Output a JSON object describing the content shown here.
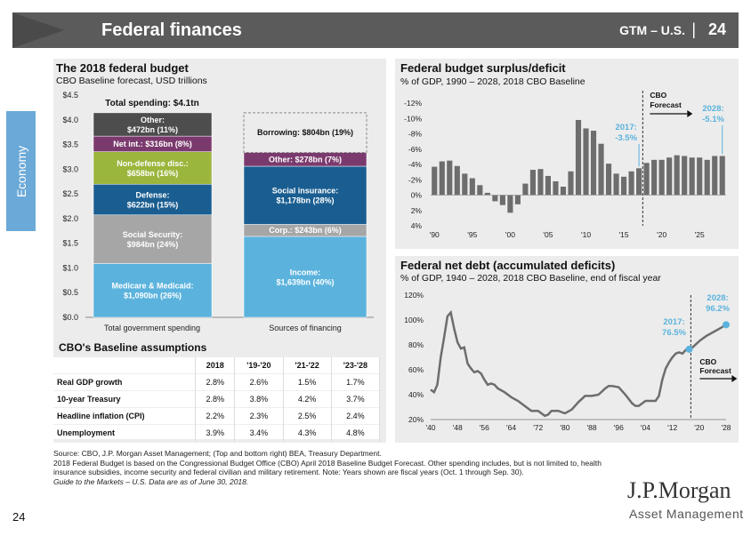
{
  "header": {
    "title": "Federal finances",
    "gtm": "GTM – U.S.",
    "sep": "|",
    "page": "24"
  },
  "sidebar": {
    "tab": "Economy"
  },
  "budget": {
    "title": "The 2018 federal budget",
    "subtitle": "CBO Baseline forecast, USD trillions",
    "total_label": "Total spending: $4.1tn",
    "chart_data": {
      "type": "bar",
      "stacked": true,
      "categories": [
        "Total government spending",
        "Sources of financing"
      ],
      "ylim": [
        0,
        4.5
      ],
      "yticks": [
        "$0.0",
        "$0.5",
        "$1.0",
        "$1.5",
        "$2.0",
        "$2.5",
        "$3.0",
        "$3.5",
        "$4.0",
        "$4.5"
      ],
      "spending": [
        {
          "name": "Medicare & Medicaid",
          "label": "Medicare & Medicaid: $1,090bn (26%)",
          "value": 1.09,
          "color": "#5bb3dd"
        },
        {
          "name": "Social Security",
          "label": "Social Security: $984bn (24%)",
          "value": 0.984,
          "color": "#a6a6a6"
        },
        {
          "name": "Defense",
          "label": "Defense: $622bn (15%)",
          "value": 0.622,
          "color": "#1a5e91"
        },
        {
          "name": "Non-defense disc.",
          "label": "Non-defense disc.: $658bn (16%)",
          "value": 0.658,
          "color": "#9bb63c"
        },
        {
          "name": "Net int.",
          "label": "Net int.: $316bn (8%)",
          "value": 0.316,
          "color": "#7b3a6e"
        },
        {
          "name": "Other",
          "label": "Other: $472bn (11%)",
          "value": 0.472,
          "color": "#4d4d4d"
        }
      ],
      "financing": [
        {
          "name": "Income",
          "label": "Income: $1,639bn (40%)",
          "value": 1.639,
          "color": "#5bb3dd"
        },
        {
          "name": "Corp.",
          "label": "Corp.: $243bn (6%)",
          "value": 0.243,
          "color": "#a6a6a6"
        },
        {
          "name": "Social insurance",
          "label": "Social insurance: $1,178bn (28%)",
          "value": 1.178,
          "color": "#1a5e91"
        },
        {
          "name": "Other",
          "label": "Other: $278bn (7%)",
          "value": 0.278,
          "color": "#7b3a6e"
        },
        {
          "name": "Borrowing",
          "label": "Borrowing: $804bn (19%)",
          "value": 0.804,
          "color": "none"
        }
      ]
    }
  },
  "assumptions": {
    "title": "CBO's Baseline assumptions",
    "headers": [
      "",
      "2018",
      "'19-'20",
      "'21-'22",
      "'23-'28"
    ],
    "rows": [
      [
        "Real GDP growth",
        "2.8%",
        "2.6%",
        "1.5%",
        "1.7%"
      ],
      [
        "10-year Treasury",
        "2.8%",
        "3.8%",
        "4.2%",
        "3.7%"
      ],
      [
        "Headline inflation (CPI)",
        "2.2%",
        "2.3%",
        "2.5%",
        "2.4%"
      ],
      [
        "Unemployment",
        "3.9%",
        "3.4%",
        "4.3%",
        "4.8%"
      ]
    ]
  },
  "deficit": {
    "title": "Federal budget surplus/deficit",
    "subtitle": "% of GDP, 1990 – 2028, 2018 CBO Baseline",
    "forecast_label": [
      "CBO",
      "Forecast"
    ],
    "ann_2017": [
      "2017:",
      "-3.5%"
    ],
    "ann_2028": [
      "2028:",
      "-5.1%"
    ],
    "chart_data": {
      "type": "bar",
      "yaxis_inverted": true,
      "ylim": [
        4,
        -12
      ],
      "yticks": [
        "-12%",
        "-10%",
        "-8%",
        "-6%",
        "-4%",
        "-2%",
        "0%",
        "2%",
        "4%"
      ],
      "xticks": [
        "'90",
        "'95",
        "'00",
        "'05",
        "'10",
        "'15",
        "'20",
        "'25"
      ],
      "x": [
        1990,
        1991,
        1992,
        1993,
        1994,
        1995,
        1996,
        1997,
        1998,
        1999,
        2000,
        2001,
        2002,
        2003,
        2004,
        2005,
        2006,
        2007,
        2008,
        2009,
        2010,
        2011,
        2012,
        2013,
        2014,
        2015,
        2016,
        2017,
        2018,
        2019,
        2020,
        2021,
        2022,
        2023,
        2024,
        2025,
        2026,
        2027,
        2028
      ],
      "values": [
        -3.7,
        -4.4,
        -4.5,
        -3.8,
        -2.8,
        -2.2,
        -1.3,
        -0.3,
        0.8,
        1.3,
        2.3,
        1.2,
        -1.5,
        -3.3,
        -3.4,
        -2.5,
        -1.8,
        -1.1,
        -3.1,
        -9.8,
        -8.7,
        -8.4,
        -6.7,
        -4.1,
        -2.8,
        -2.4,
        -3.1,
        -3.5,
        -4.2,
        -4.6,
        -4.6,
        -4.9,
        -5.2,
        -5.1,
        -4.9,
        -4.9,
        -4.6,
        -5.1,
        -5.1
      ],
      "forecast_start": 2017.5
    }
  },
  "debt": {
    "title": "Federal net debt (accumulated deficits)",
    "subtitle": "% of GDP, 1940 – 2028, 2018 CBO Baseline, end of fiscal year",
    "forecast_label": [
      "CBO",
      "Forecast"
    ],
    "ann_2017": [
      "2017:",
      "76.5%"
    ],
    "ann_2028": [
      "2028:",
      "96.2%"
    ],
    "chart_data": {
      "type": "line",
      "ylim": [
        20,
        120
      ],
      "yticks": [
        "20%",
        "40%",
        "60%",
        "80%",
        "100%",
        "120%"
      ],
      "xticks": [
        "'40",
        "'48",
        "'56",
        "'64",
        "'72",
        "'80",
        "'88",
        "'96",
        "'04",
        "'12",
        "'20",
        "'28"
      ],
      "x": [
        1940,
        1941,
        1942,
        1943,
        1944,
        1945,
        1946,
        1947,
        1948,
        1949,
        1950,
        1951,
        1952,
        1953,
        1954,
        1955,
        1956,
        1957,
        1958,
        1959,
        1960,
        1962,
        1964,
        1966,
        1968,
        1970,
        1972,
        1974,
        1975,
        1976,
        1978,
        1980,
        1982,
        1984,
        1986,
        1988,
        1990,
        1992,
        1993,
        1994,
        1996,
        1998,
        2000,
        2001,
        2002,
        2004,
        2006,
        2007,
        2008,
        2009,
        2010,
        2011,
        2012,
        2013,
        2014,
        2015,
        2016,
        2017,
        2018,
        2020,
        2022,
        2024,
        2026,
        2028
      ],
      "values": [
        44,
        42,
        48,
        70,
        86,
        103,
        106,
        93,
        82,
        77,
        78,
        65,
        61,
        58,
        59,
        57,
        52,
        48,
        49,
        48,
        45,
        42,
        38,
        35,
        31,
        27,
        27,
        23,
        24,
        27,
        27,
        25,
        28,
        34,
        39,
        39,
        40,
        45,
        47,
        47,
        46,
        40,
        33,
        31,
        31,
        35,
        35,
        35,
        39,
        52,
        61,
        66,
        70,
        73,
        74,
        73,
        76,
        76.5,
        78,
        83,
        87,
        90,
        93,
        96.2
      ],
      "forecast_start": 2017.5
    }
  },
  "source": {
    "line1": "Source: CBO, J.P. Morgan Asset Management; (Top and bottom right) BEA, Treasury Department.",
    "line2": "2018 Federal Budget is based on the Congressional Budget Office (CBO) April 2018 Baseline Budget Forecast. Other spending includes, but is not limited to, health insurance subsidies, income security and federal civilian and military retirement. Note: Years shown are fiscal years (Oct. 1 through Sep. 30).",
    "line3": "Guide to the Markets – U.S. Data are as of June 30, 2018."
  },
  "footer": {
    "page": "24",
    "logo": "J.P.Morgan",
    "logo_sub": "Asset Management"
  }
}
